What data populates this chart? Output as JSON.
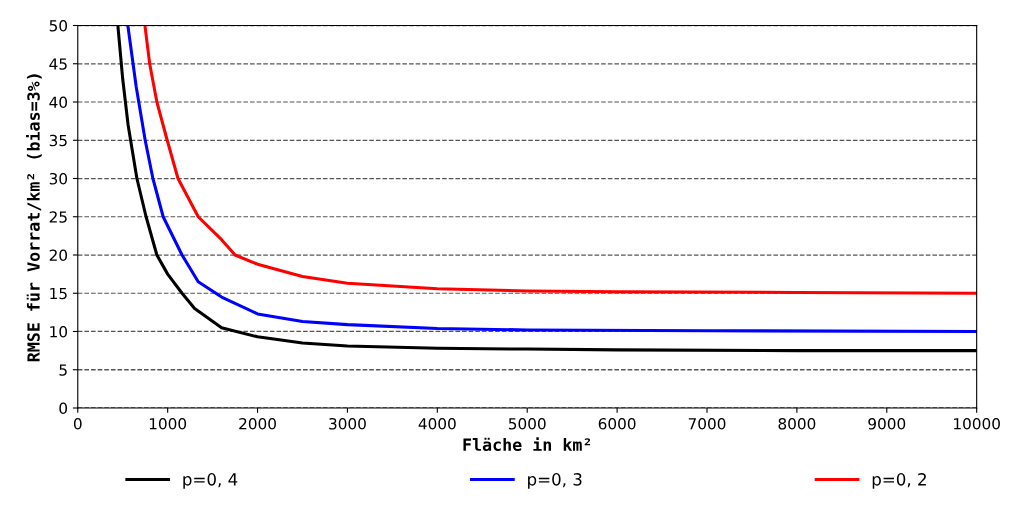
{
  "chart_data": {
    "type": "line",
    "xlabel": "Fläche in km²",
    "ylabel": "RMSE für Vorrat/km² (bias=3%)",
    "xlim": [
      0,
      10000
    ],
    "xticks": [
      0,
      1000,
      2000,
      3000,
      4000,
      5000,
      6000,
      7000,
      8000,
      9000,
      10000
    ],
    "ylim": [
      0,
      50
    ],
    "yticks": [
      0,
      5,
      10,
      15,
      20,
      25,
      30,
      35,
      40,
      45,
      50
    ],
    "grid": "y",
    "legend": "bottom",
    "marker": "none",
    "line_style": "solid",
    "series": [
      {
        "name": "p=0, 4",
        "color": "#000000",
        "x": [
          446,
          500,
          560,
          658,
          760,
          880,
          1000,
          1160,
          1300,
          1600,
          2000,
          2500,
          3000,
          4000,
          5000,
          6000,
          8000,
          10000
        ],
        "values": [
          50,
          43,
          37,
          30,
          25,
          20,
          17.5,
          15,
          13,
          10.5,
          9.3,
          8.5,
          8.1,
          7.8,
          7.7,
          7.6,
          7.5,
          7.5
        ]
      },
      {
        "name": "p=0, 3",
        "color": "#0000ff",
        "x": [
          557,
          650,
          750,
          836,
          950,
          1160,
          1340,
          1600,
          2000,
          2500,
          3000,
          4000,
          5000,
          7000,
          10000
        ],
        "values": [
          50,
          42,
          35,
          30,
          25,
          20,
          16.5,
          14.5,
          12.3,
          11.3,
          10.9,
          10.4,
          10.2,
          10.1,
          10.0
        ]
      },
      {
        "name": "p=0, 2",
        "color": "#ff0000",
        "x": [
          747,
          800,
          880,
          995,
          1115,
          1340,
          1600,
          1750,
          2000,
          2500,
          3000,
          4000,
          5000,
          6000,
          8000,
          10000
        ],
        "values": [
          50,
          45,
          40,
          35,
          30,
          25,
          22,
          20,
          18.8,
          17.2,
          16.3,
          15.6,
          15.3,
          15.2,
          15.1,
          15.0
        ]
      }
    ]
  }
}
